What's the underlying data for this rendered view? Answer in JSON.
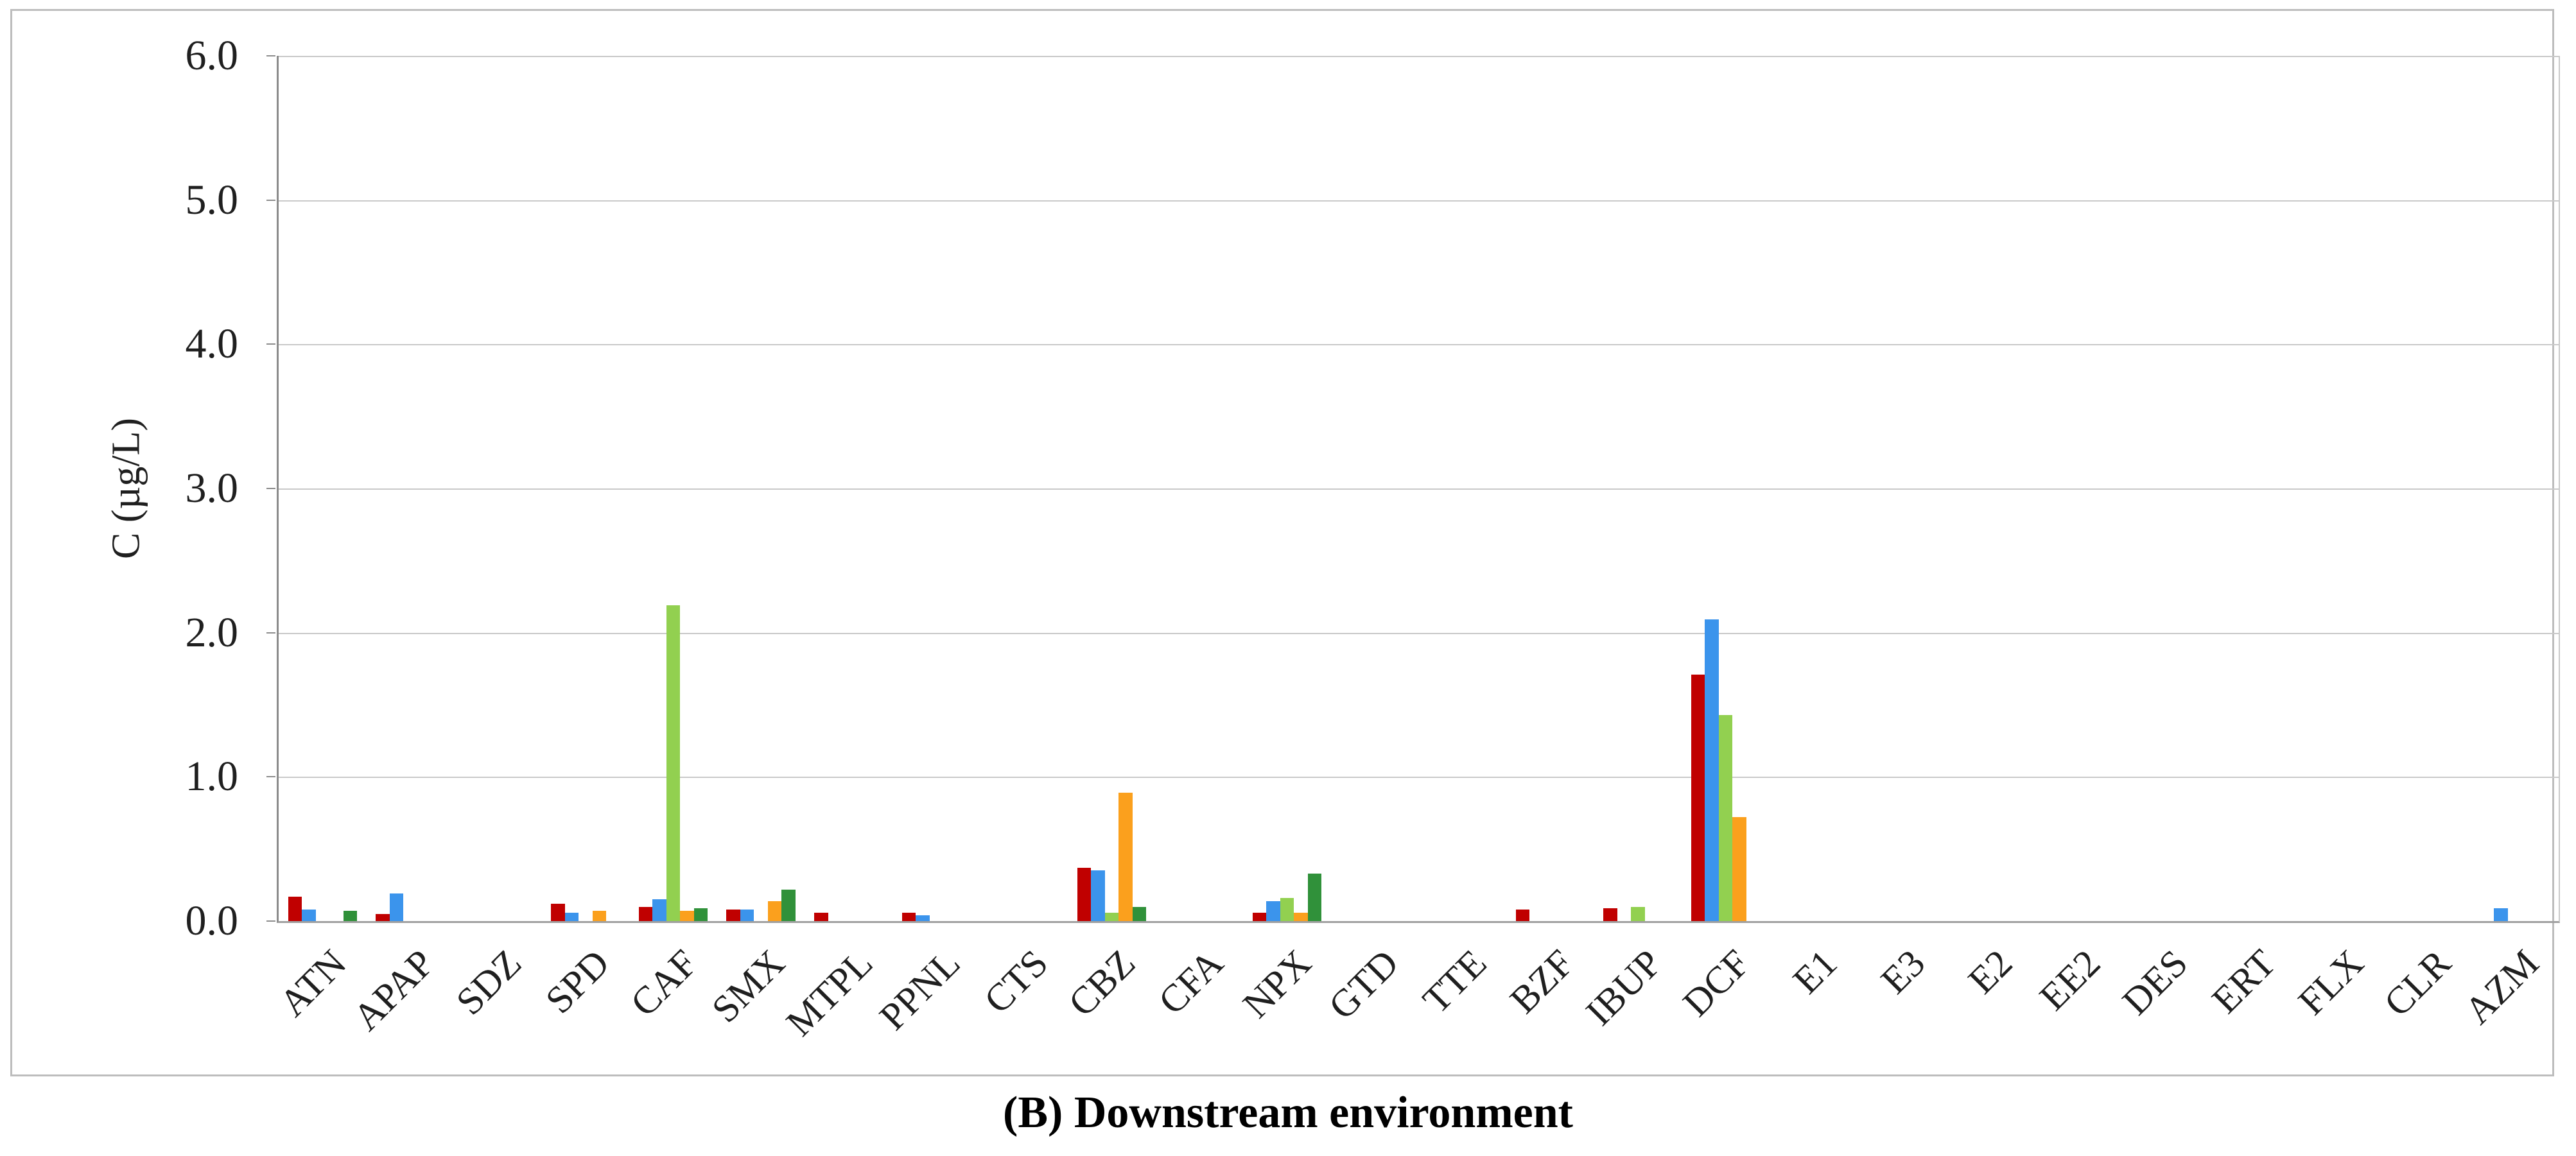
{
  "figure": {
    "caption_label": "(B)",
    "caption_text": "Downstream environment"
  },
  "chart_data": {
    "type": "bar",
    "title": "",
    "xlabel": "",
    "ylabel": "C (µg/L)",
    "ylim": [
      0,
      6
    ],
    "ytick_labels": [
      "0.0",
      "1.0",
      "2.0",
      "3.0",
      "4.0",
      "5.0",
      "6.0"
    ],
    "grid": true,
    "legend_position": "none",
    "categories": [
      "ATN",
      "APAP",
      "SDZ",
      "SPD",
      "CAF",
      "SMX",
      "MTPL",
      "PPNL",
      "CTS",
      "CBZ",
      "CFA",
      "NPX",
      "GTD",
      "TTE",
      "BZF",
      "IBUP",
      "DCF",
      "E1",
      "E3",
      "E2",
      "EE2",
      "DES",
      "ERT",
      "FLX",
      "CLR",
      "AZM"
    ],
    "series": [
      {
        "name": "series-1",
        "color": "#c00000",
        "values": [
          0.17,
          0.05,
          0,
          0.12,
          0.1,
          0.08,
          0.06,
          0.06,
          0,
          0.37,
          0,
          0.06,
          0,
          0,
          0.08,
          0.09,
          1.71,
          0,
          0,
          0,
          0,
          0,
          0,
          0,
          0,
          0
        ]
      },
      {
        "name": "series-2",
        "color": "#3b94ec",
        "values": [
          0.08,
          0.19,
          0,
          0.06,
          0.15,
          0.08,
          0,
          0.04,
          0,
          0.35,
          0,
          0.14,
          0,
          0,
          0,
          0,
          2.09,
          0,
          0,
          0,
          0,
          0,
          0,
          0,
          0,
          0.09
        ]
      },
      {
        "name": "series-3",
        "color": "#92d050",
        "values": [
          0,
          0,
          0,
          0,
          2.19,
          0,
          0,
          0,
          0,
          0.06,
          0,
          0.16,
          0,
          0,
          0,
          0.1,
          1.43,
          0,
          0,
          0,
          0,
          0,
          0,
          0,
          0,
          0
        ]
      },
      {
        "name": "series-4",
        "color": "#fba01d",
        "values": [
          0,
          0,
          0,
          0.07,
          0.07,
          0.14,
          0,
          0,
          0,
          0.89,
          0,
          0.06,
          0,
          0,
          0,
          0,
          0.72,
          0,
          0,
          0,
          0,
          0,
          0,
          0,
          0,
          0
        ]
      },
      {
        "name": "series-5",
        "color": "#30913a",
        "values": [
          0.07,
          0,
          0,
          0,
          0.09,
          0.22,
          0,
          0,
          0,
          0.1,
          0,
          0.33,
          0,
          0,
          0,
          0,
          0,
          0,
          0,
          0,
          0,
          0,
          0,
          0,
          0,
          0
        ]
      }
    ]
  }
}
